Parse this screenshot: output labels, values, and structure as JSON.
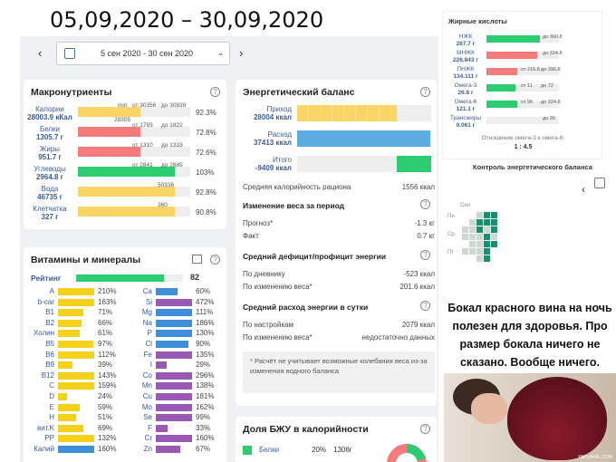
{
  "overlay_title": "05,09,2020 – 30,09,2020",
  "datebar": {
    "range": "5 сен 2020 - 30 сен 2020",
    "prev": "‹",
    "next": "›",
    "chevron": "⌄"
  },
  "macros": {
    "title": "Макронутриенты",
    "items": [
      {
        "name": "Калории",
        "value": "28003.9 кКал",
        "from": "от 30356",
        "to": "до 30839",
        "min": "min",
        "extra": "29305",
        "pct": "92.3%",
        "fill": 0.56,
        "color": "#f9d568"
      },
      {
        "name": "Белки",
        "value": "1305.7 г",
        "from": "от 1793",
        "to": "до 1822",
        "pct": "72.8%",
        "fill": 0.56,
        "color": "#f47c7c"
      },
      {
        "name": "Жиры",
        "value": "951.7 г",
        "from": "от 1310",
        "to": "до 1333",
        "pct": "72.6%",
        "fill": 0.56,
        "color": "#f47c7c"
      },
      {
        "name": "Углеводы",
        "value": "2964.8 г",
        "from": "от 2841",
        "to": "до 2885",
        "pct": "103%",
        "fill": 0.86,
        "color": "#2ecc71"
      },
      {
        "name": "Вода",
        "value": "46735 г",
        "extra": "50336",
        "pct": "92.8%",
        "fill": 0.86,
        "color": "#f9d568"
      },
      {
        "name": "Клетчатка",
        "value": "327 г",
        "extra": "360",
        "pct": "90.8%",
        "fill": 0.86,
        "color": "#f9d568"
      }
    ]
  },
  "vitamins": {
    "title": "Витамины и минералы",
    "rating_label": "Рейтинг",
    "rating_value": "82",
    "rating_fill": 0.82,
    "left": [
      {
        "name": "A",
        "pct": "210%",
        "level": 1.0,
        "color": "#f4d11b"
      },
      {
        "name": "b-car",
        "pct": "163%",
        "level": 1.0,
        "color": "#f4d11b"
      },
      {
        "name": "B1",
        "pct": "71%",
        "level": 0.71,
        "color": "#f4d11b"
      },
      {
        "name": "B2",
        "pct": "66%",
        "level": 0.66,
        "color": "#f4d11b"
      },
      {
        "name": "Холин",
        "pct": "61%",
        "level": 0.61,
        "color": "#f4d11b"
      },
      {
        "name": "B5",
        "pct": "97%",
        "level": 0.97,
        "color": "#f4d11b"
      },
      {
        "name": "B6",
        "pct": "112%",
        "level": 1.0,
        "color": "#f4d11b"
      },
      {
        "name": "B9",
        "pct": "39%",
        "level": 0.39,
        "color": "#f4d11b"
      },
      {
        "name": "B12",
        "pct": "143%",
        "level": 1.0,
        "color": "#f4d11b"
      },
      {
        "name": "C",
        "pct": "159%",
        "level": 1.0,
        "color": "#f4d11b"
      },
      {
        "name": "D",
        "pct": "24%",
        "level": 0.24,
        "color": "#f4d11b"
      },
      {
        "name": "E",
        "pct": "59%",
        "level": 0.59,
        "color": "#f4d11b"
      },
      {
        "name": "H",
        "pct": "51%",
        "level": 0.51,
        "color": "#f4d11b"
      },
      {
        "name": "вит.K",
        "pct": "69%",
        "level": 0.69,
        "color": "#f4d11b"
      },
      {
        "name": "PP",
        "pct": "132%",
        "level": 1.0,
        "color": "#f4d11b"
      },
      {
        "name": "Калий",
        "pct": "160%",
        "level": 1.0,
        "color": "#3f8fd8"
      }
    ],
    "right": [
      {
        "name": "Ca",
        "pct": "60%",
        "level": 0.6,
        "color": "#3f8fd8"
      },
      {
        "name": "Si",
        "pct": "472%",
        "level": 1.0,
        "color": "#9b59b6"
      },
      {
        "name": "Mg",
        "pct": "111%",
        "level": 1.0,
        "color": "#3f8fd8"
      },
      {
        "name": "Na",
        "pct": "186%",
        "level": 1.0,
        "color": "#3f8fd8"
      },
      {
        "name": "P",
        "pct": "130%",
        "level": 1.0,
        "color": "#3f8fd8"
      },
      {
        "name": "Cl",
        "pct": "90%",
        "level": 0.9,
        "color": "#3f8fd8"
      },
      {
        "name": "Fe",
        "pct": "135%",
        "level": 1.0,
        "color": "#9b59b6"
      },
      {
        "name": "I",
        "pct": "29%",
        "level": 0.29,
        "color": "#9b59b6"
      },
      {
        "name": "Co",
        "pct": "296%",
        "level": 1.0,
        "color": "#9b59b6"
      },
      {
        "name": "Mn",
        "pct": "138%",
        "level": 1.0,
        "color": "#9b59b6"
      },
      {
        "name": "Cu",
        "pct": "181%",
        "level": 1.0,
        "color": "#9b59b6"
      },
      {
        "name": "Mo",
        "pct": "162%",
        "level": 1.0,
        "color": "#9b59b6"
      },
      {
        "name": "Se",
        "pct": "99%",
        "level": 0.99,
        "color": "#9b59b6"
      },
      {
        "name": "F",
        "pct": "33%",
        "level": 0.33,
        "color": "#9b59b6"
      },
      {
        "name": "Cr",
        "pct": "160%",
        "level": 1.0,
        "color": "#9b59b6"
      },
      {
        "name": "Zn",
        "pct": "67%",
        "level": 0.67,
        "color": "#9b59b6"
      }
    ]
  },
  "energy": {
    "title": "Энергетический баланс",
    "intake_label": "Приход",
    "intake_value": "28004 ккал",
    "intake_fill": 0.74,
    "expense_label": "Расход",
    "expense_value": "37413 ккал",
    "expense_fill": 0.99,
    "total_label": "Итого",
    "total_value": "-9409 ккал",
    "avg_label": "Средняя калорийность рациона",
    "avg_value": "1556 ккал",
    "weight_title": "Изменение веса за период",
    "forecast_label": "Прогноз*",
    "forecast_value": "-1.3 кг",
    "fact_label": "Факт",
    "fact_value": "0.7 кг",
    "deficit_title": "Средний дефицит/профицит энергии",
    "diary_label": "По дневнику",
    "diary_value": "-523 ккал",
    "weightchange_label": "По изменению веса*",
    "weightchange_value": "201.6 ккал",
    "daily_title": "Средний расход энергии в сутки",
    "settings_label": "По настройкам",
    "settings_value": "2079 ккал",
    "wc2_label": "По изменению веса*",
    "wc2_value": "недостаточно данных",
    "note": "* Расчёт не учитывает возможные колебания веса из-за изменения водного баланса"
  },
  "bju": {
    "title": "Доля БЖУ в калорийности",
    "label": "Белки",
    "pct": "20%",
    "grams": "1306г"
  },
  "fatty": {
    "title": "Жирные кислоты",
    "items": [
      {
        "name": "НЖК",
        "value": "267.7 г",
        "to": "до 360.8",
        "fill": 0.74,
        "color": "#2ecc71"
      },
      {
        "name": "МНЖК",
        "value": "226.843 г",
        "to": "до 324.8",
        "fill": 0.7,
        "color": "#f47c7c"
      },
      {
        "name": "ПНЖК",
        "value": "134.111 г",
        "from": "от 216.8",
        "to": "до 396.8",
        "fill": 0.42,
        "color": "#f47c7c"
      },
      {
        "name": "Омега-3",
        "value": "26.8 г",
        "from": "от 11",
        "to": "до 72",
        "fill": 0.4,
        "color": "#2ecc71"
      },
      {
        "name": "Омега-6",
        "value": "121.1 г",
        "from": "от 90",
        "to": "до 324.8",
        "fill": 0.42,
        "color": "#2ecc71"
      },
      {
        "name": "Трансжиры",
        "value": "0.061 г",
        "to": "до 36",
        "fill": 0.0,
        "color": "#2ecc71"
      }
    ],
    "ratio_label": "Отношение омега-3 к омега-6:",
    "ratio_value": "1 : 4.5"
  },
  "control": {
    "title": "Контроль энергетического баланса",
    "prev": "‹",
    "week_label": "Сен",
    "row_labels": [
      "Пн",
      "Ср",
      "Пт"
    ]
  },
  "meme": {
    "text": "Бокал красного вина на ночь полезен для здоровья. Про размер бокала ничего не сказано. Вообще ничего.",
    "watermark": "YAPLAKAL.COM"
  }
}
